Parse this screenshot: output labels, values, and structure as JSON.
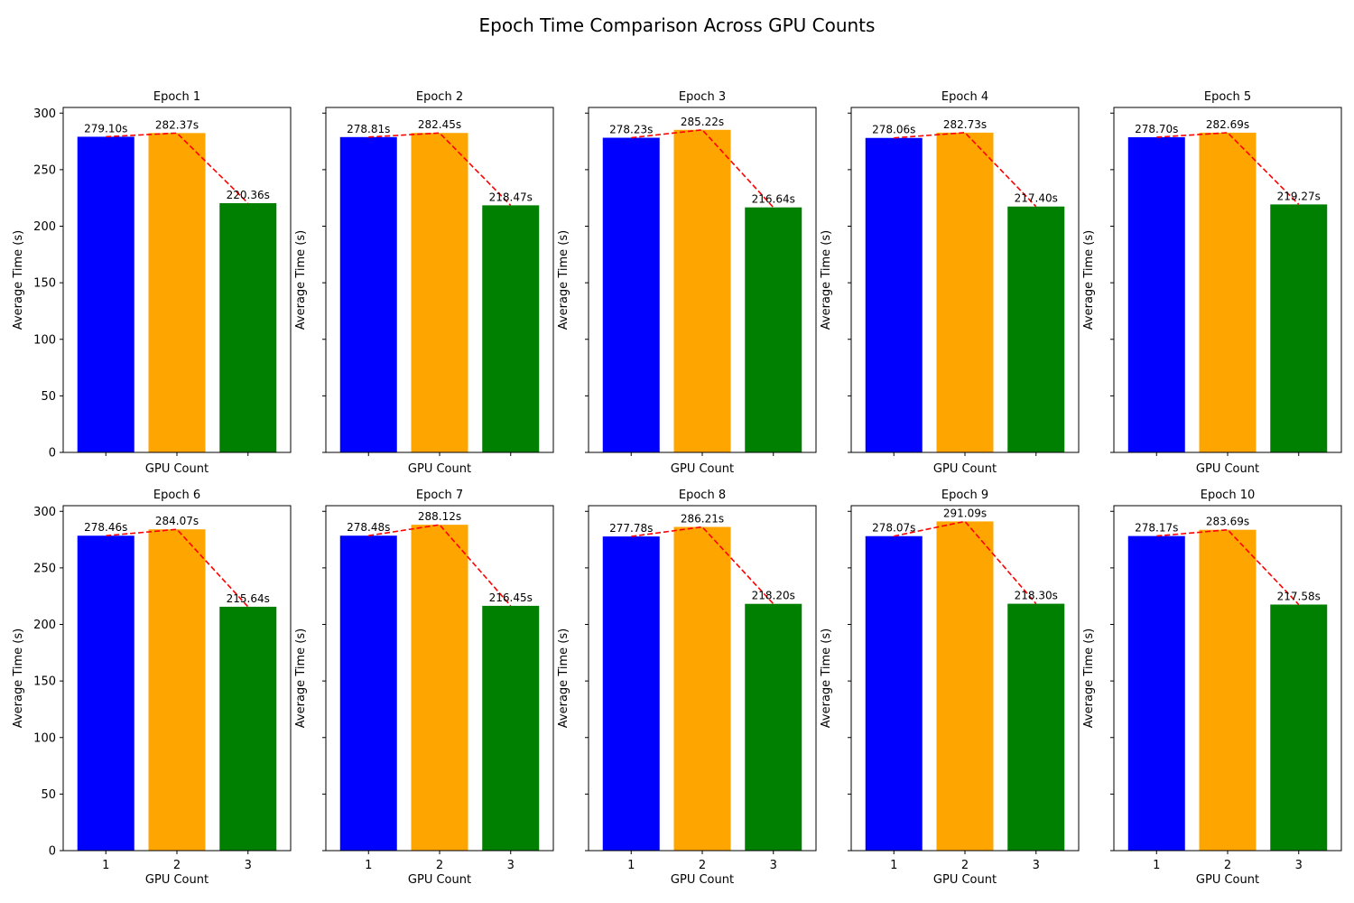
{
  "figure": {
    "title": "Epoch Time Comparison Across GPU Counts"
  },
  "colors": {
    "bar_colors": [
      "#0000ff",
      "#ffa500",
      "#008000"
    ],
    "trend_line": "#ff0000",
    "axes": "#000000"
  },
  "chart_data": [
    {
      "type": "bar",
      "title": "Epoch 1",
      "xlabel": "GPU Count",
      "ylabel": "Average Time (s)",
      "categories": [
        "1",
        "2",
        "3"
      ],
      "values": [
        279.1,
        282.37,
        220.36
      ],
      "labels": [
        "279.10s",
        "282.37s",
        "220.36s"
      ],
      "ylim": [
        0,
        305
      ],
      "yticks": [
        0,
        50,
        100,
        150,
        200,
        250,
        300
      ],
      "show_xtick_labels": false,
      "show_ytick_labels": true,
      "trend_line": "dashed"
    },
    {
      "type": "bar",
      "title": "Epoch 2",
      "xlabel": "GPU Count",
      "ylabel": "Average Time (s)",
      "categories": [
        "1",
        "2",
        "3"
      ],
      "values": [
        278.81,
        282.45,
        218.47
      ],
      "labels": [
        "278.81s",
        "282.45s",
        "218.47s"
      ],
      "ylim": [
        0,
        305
      ],
      "yticks": [
        0,
        50,
        100,
        150,
        200,
        250,
        300
      ],
      "show_xtick_labels": false,
      "show_ytick_labels": false,
      "trend_line": "dashed"
    },
    {
      "type": "bar",
      "title": "Epoch 3",
      "xlabel": "GPU Count",
      "ylabel": "Average Time (s)",
      "categories": [
        "1",
        "2",
        "3"
      ],
      "values": [
        278.23,
        285.22,
        216.64
      ],
      "labels": [
        "278.23s",
        "285.22s",
        "216.64s"
      ],
      "ylim": [
        0,
        305
      ],
      "yticks": [
        0,
        50,
        100,
        150,
        200,
        250,
        300
      ],
      "show_xtick_labels": false,
      "show_ytick_labels": false,
      "trend_line": "dashed"
    },
    {
      "type": "bar",
      "title": "Epoch 4",
      "xlabel": "GPU Count",
      "ylabel": "Average Time (s)",
      "categories": [
        "1",
        "2",
        "3"
      ],
      "values": [
        278.06,
        282.73,
        217.4
      ],
      "labels": [
        "278.06s",
        "282.73s",
        "217.40s"
      ],
      "ylim": [
        0,
        305
      ],
      "yticks": [
        0,
        50,
        100,
        150,
        200,
        250,
        300
      ],
      "show_xtick_labels": false,
      "show_ytick_labels": false,
      "trend_line": "dashed"
    },
    {
      "type": "bar",
      "title": "Epoch 5",
      "xlabel": "GPU Count",
      "ylabel": "Average Time (s)",
      "categories": [
        "1",
        "2",
        "3"
      ],
      "values": [
        278.7,
        282.69,
        219.27
      ],
      "labels": [
        "278.70s",
        "282.69s",
        "219.27s"
      ],
      "ylim": [
        0,
        305
      ],
      "yticks": [
        0,
        50,
        100,
        150,
        200,
        250,
        300
      ],
      "show_xtick_labels": false,
      "show_ytick_labels": false,
      "trend_line": "dashed"
    },
    {
      "type": "bar",
      "title": "Epoch 6",
      "xlabel": "GPU Count",
      "ylabel": "Average Time (s)",
      "categories": [
        "1",
        "2",
        "3"
      ],
      "values": [
        278.46,
        284.07,
        215.64
      ],
      "labels": [
        "278.46s",
        "284.07s",
        "215.64s"
      ],
      "ylim": [
        0,
        305
      ],
      "yticks": [
        0,
        50,
        100,
        150,
        200,
        250,
        300
      ],
      "show_xtick_labels": true,
      "show_ytick_labels": true,
      "trend_line": "dashed"
    },
    {
      "type": "bar",
      "title": "Epoch 7",
      "xlabel": "GPU Count",
      "ylabel": "Average Time (s)",
      "categories": [
        "1",
        "2",
        "3"
      ],
      "values": [
        278.48,
        288.12,
        216.45
      ],
      "labels": [
        "278.48s",
        "288.12s",
        "216.45s"
      ],
      "ylim": [
        0,
        305
      ],
      "yticks": [
        0,
        50,
        100,
        150,
        200,
        250,
        300
      ],
      "show_xtick_labels": true,
      "show_ytick_labels": false,
      "trend_line": "dashed"
    },
    {
      "type": "bar",
      "title": "Epoch 8",
      "xlabel": "GPU Count",
      "ylabel": "Average Time (s)",
      "categories": [
        "1",
        "2",
        "3"
      ],
      "values": [
        277.78,
        286.21,
        218.2
      ],
      "labels": [
        "277.78s",
        "286.21s",
        "218.20s"
      ],
      "ylim": [
        0,
        305
      ],
      "yticks": [
        0,
        50,
        100,
        150,
        200,
        250,
        300
      ],
      "show_xtick_labels": true,
      "show_ytick_labels": false,
      "trend_line": "dashed"
    },
    {
      "type": "bar",
      "title": "Epoch 9",
      "xlabel": "GPU Count",
      "ylabel": "Average Time (s)",
      "categories": [
        "1",
        "2",
        "3"
      ],
      "values": [
        278.07,
        291.09,
        218.3
      ],
      "labels": [
        "278.07s",
        "291.09s",
        "218.30s"
      ],
      "ylim": [
        0,
        305
      ],
      "yticks": [
        0,
        50,
        100,
        150,
        200,
        250,
        300
      ],
      "show_xtick_labels": true,
      "show_ytick_labels": false,
      "trend_line": "dashed"
    },
    {
      "type": "bar",
      "title": "Epoch 10",
      "xlabel": "GPU Count",
      "ylabel": "Average Time (s)",
      "categories": [
        "1",
        "2",
        "3"
      ],
      "values": [
        278.17,
        283.69,
        217.58
      ],
      "labels": [
        "278.17s",
        "283.69s",
        "217.58s"
      ],
      "ylim": [
        0,
        305
      ],
      "yticks": [
        0,
        50,
        100,
        150,
        200,
        250,
        300
      ],
      "show_xtick_labels": true,
      "show_ytick_labels": false,
      "trend_line": "dashed"
    }
  ]
}
